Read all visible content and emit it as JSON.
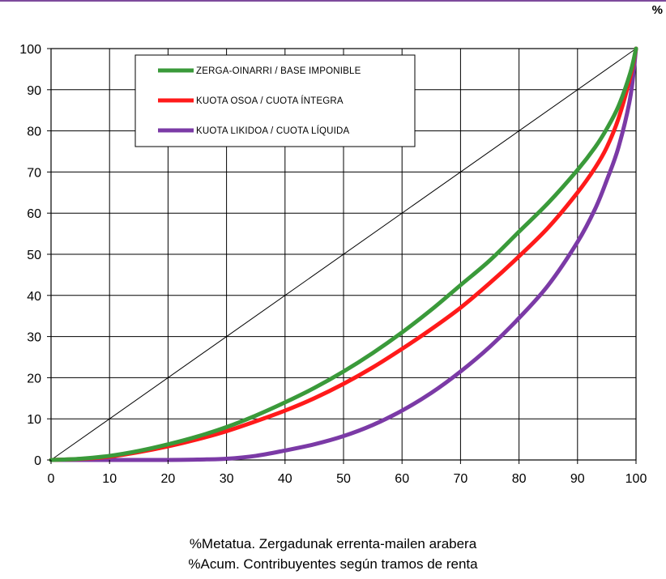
{
  "corner_label": "%",
  "chart_data": {
    "type": "line",
    "xlim": [
      0,
      100
    ],
    "ylim": [
      0,
      100
    ],
    "x_ticks": [
      0,
      10,
      20,
      30,
      40,
      50,
      60,
      70,
      80,
      90,
      100
    ],
    "y_ticks": [
      0,
      10,
      20,
      30,
      40,
      50,
      60,
      70,
      80,
      90,
      100
    ],
    "grid": true,
    "legend_position": "top-left inside plot",
    "xlabel_lines": [
      "%Metatua. Zergadunak errenta-mailen arabera",
      "%Acum. Contribuyentes según tramos de renta"
    ],
    "diagonal": {
      "x": [
        0,
        100
      ],
      "y": [
        0,
        100
      ],
      "color": "#000000"
    },
    "series": [
      {
        "name": "ZERGA-OINARRI / BASE IMPONIBLE",
        "color": "#3a9a3a",
        "x": [
          0,
          5,
          10,
          15,
          20,
          25,
          30,
          35,
          40,
          45,
          50,
          55,
          60,
          65,
          70,
          75,
          80,
          85,
          90,
          93,
          95,
          97,
          99,
          100
        ],
        "y": [
          0,
          0.3,
          1,
          2.2,
          3.8,
          5.7,
          8,
          10.8,
          14,
          17.5,
          21.5,
          26,
          31,
          36.5,
          42.5,
          48.5,
          55.5,
          62.5,
          70.5,
          76,
          80.5,
          86,
          94,
          100
        ]
      },
      {
        "name": "KUOTA OSOA / CUOTA ÍNTEGRA",
        "color": "#ff1a1a",
        "x": [
          0,
          5,
          10,
          15,
          20,
          25,
          30,
          35,
          40,
          45,
          50,
          55,
          60,
          65,
          70,
          75,
          80,
          85,
          90,
          93,
          95,
          97,
          99,
          100
        ],
        "y": [
          0,
          0.25,
          0.8,
          1.9,
          3.3,
          5,
          7,
          9.4,
          12,
          15,
          18.5,
          22.5,
          27,
          31.8,
          37,
          43,
          49.5,
          56.5,
          65,
          71,
          76,
          83,
          93,
          100
        ]
      },
      {
        "name": "KUOTA LIKIDOA / CUOTA LÍQUIDA",
        "color": "#7b3aa6",
        "x": [
          0,
          10,
          20,
          25,
          30,
          35,
          40,
          45,
          50,
          55,
          60,
          65,
          70,
          75,
          80,
          85,
          90,
          93,
          95,
          97,
          99,
          100
        ],
        "y": [
          0,
          0,
          0,
          0.1,
          0.3,
          1,
          2.3,
          3.8,
          5.8,
          8.5,
          12,
          16.3,
          21.5,
          27.5,
          34.5,
          42.5,
          53,
          61,
          68,
          76,
          88,
          100
        ]
      }
    ]
  }
}
